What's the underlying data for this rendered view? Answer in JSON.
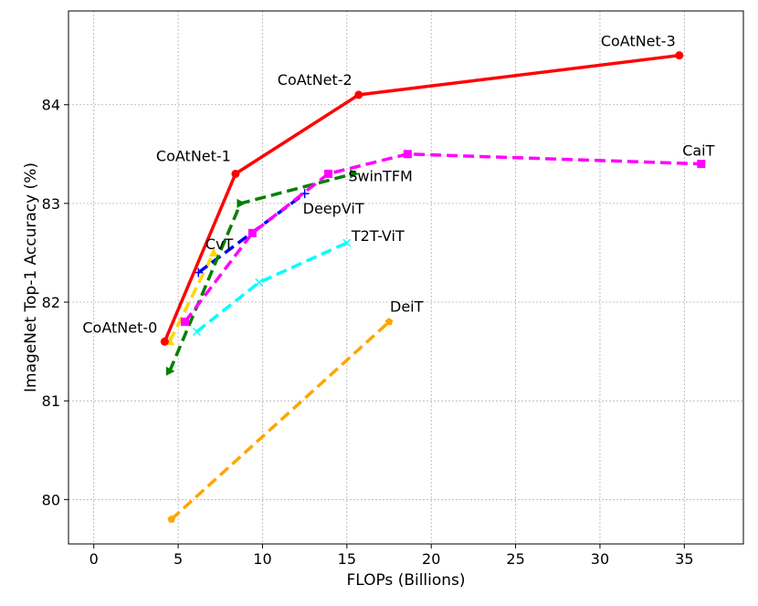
{
  "chart_data": {
    "type": "line",
    "xlabel": "FLOPs (Billions)",
    "ylabel": "ImageNet Top-1 Accuracy (%)",
    "xlim": [
      -1.5,
      38.5
    ],
    "ylim": [
      79.55,
      84.95
    ],
    "xticks": [
      0,
      5,
      10,
      15,
      20,
      25,
      30,
      35
    ],
    "yticks": [
      80,
      81,
      82,
      83,
      84
    ],
    "grid": true,
    "series": [
      {
        "name": "CoAtNet",
        "color": "#ff0000",
        "dash": "solid",
        "marker": "circle",
        "x": [
          4.2,
          8.4,
          15.7,
          34.7
        ],
        "y": [
          81.6,
          83.3,
          84.1,
          84.5
        ],
        "point_labels": [
          "CoAtNet-0",
          "CoAtNet-1",
          "CoAtNet-2",
          "CoAtNet-3"
        ]
      },
      {
        "name": "CaiT",
        "color": "#ff00ff",
        "dash": "dashed",
        "marker": "square",
        "x": [
          5.4,
          9.4,
          13.9,
          18.6,
          36.0
        ],
        "y": [
          81.8,
          82.7,
          83.3,
          83.5,
          83.4
        ],
        "point_labels": [
          "",
          "",
          "",
          "",
          "CaiT"
        ]
      },
      {
        "name": "SwinTFM",
        "color": "#008000",
        "dash": "dashed",
        "marker": "triangle-right",
        "x": [
          4.5,
          8.7,
          15.4
        ],
        "y": [
          81.3,
          83.0,
          83.3
        ],
        "point_labels": [
          "",
          "",
          "SwinTFM"
        ]
      },
      {
        "name": "DeepViT",
        "color": "#0000ff",
        "dash": "dashed",
        "marker": "plus",
        "x": [
          6.2,
          12.5
        ],
        "y": [
          82.3,
          83.1
        ],
        "point_labels": [
          "",
          "DeepViT"
        ]
      },
      {
        "name": "CvT",
        "color": "#ffd700",
        "dash": "dashed",
        "marker": "triangle-up",
        "x": [
          4.5,
          7.1
        ],
        "y": [
          81.6,
          82.5
        ],
        "point_labels": [
          "",
          "CvT"
        ]
      },
      {
        "name": "T2T-ViT",
        "color": "#00ffff",
        "dash": "dashed",
        "marker": "x",
        "x": [
          6.1,
          9.8,
          15.0
        ],
        "y": [
          81.7,
          82.2,
          82.6
        ],
        "point_labels": [
          "",
          "",
          "T2T-ViT"
        ]
      },
      {
        "name": "DeiT",
        "color": "#ffa500",
        "dash": "dashed",
        "marker": "pentagon",
        "x": [
          4.6,
          17.5
        ],
        "y": [
          79.8,
          81.8
        ],
        "point_labels": [
          "",
          "DeiT"
        ]
      }
    ]
  }
}
